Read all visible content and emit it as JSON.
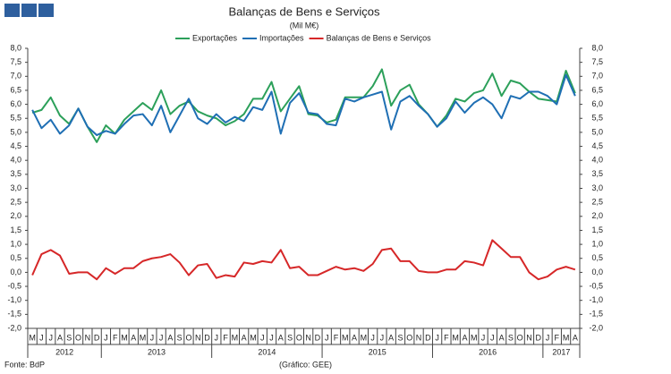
{
  "chart_data": {
    "type": "line",
    "title": "Balanças de Bens e Serviços",
    "subtitle": "(Mil M€)",
    "categories": [
      "M",
      "J",
      "J",
      "A",
      "S",
      "O",
      "N",
      "D",
      "J",
      "F",
      "M",
      "A",
      "M",
      "J",
      "J",
      "A",
      "S",
      "O",
      "N",
      "D",
      "J",
      "F",
      "M",
      "A",
      "M",
      "J",
      "J",
      "A",
      "S",
      "O",
      "N",
      "D",
      "J",
      "F",
      "M",
      "A",
      "M",
      "J",
      "J",
      "A",
      "S",
      "O",
      "N",
      "D",
      "J",
      "F",
      "M",
      "A",
      "M",
      "J",
      "J",
      "A",
      "S",
      "O",
      "N",
      "D",
      "J",
      "F",
      "M",
      "A"
    ],
    "years": [
      "2012",
      "2013",
      "2014",
      "2015",
      "2016",
      "2017"
    ],
    "series": [
      {
        "name": "Exportações",
        "color": "#2ca05a",
        "values": [
          5.7,
          5.8,
          6.25,
          5.6,
          5.3,
          5.85,
          5.2,
          4.65,
          5.25,
          4.95,
          5.45,
          5.75,
          6.05,
          5.8,
          6.5,
          5.65,
          5.95,
          6.1,
          5.75,
          5.6,
          5.5,
          5.25,
          5.4,
          5.65,
          6.2,
          6.2,
          6.8,
          5.75,
          6.2,
          6.65,
          5.65,
          5.6,
          5.35,
          5.45,
          6.25,
          6.25,
          6.25,
          6.65,
          7.25,
          5.95,
          6.5,
          6.7,
          6.0,
          5.65,
          5.2,
          5.6,
          6.2,
          6.1,
          6.4,
          6.5,
          7.1,
          6.3,
          6.85,
          6.75,
          6.45,
          6.2,
          6.15,
          6.1,
          7.2,
          6.4
        ]
      },
      {
        "name": "Importações",
        "color": "#1f6fb4",
        "values": [
          5.8,
          5.15,
          5.45,
          4.95,
          5.25,
          5.85,
          5.2,
          4.9,
          5.05,
          4.95,
          5.3,
          5.6,
          5.65,
          5.25,
          5.95,
          5.0,
          5.6,
          6.2,
          5.5,
          5.3,
          5.65,
          5.35,
          5.55,
          5.4,
          5.9,
          5.8,
          6.45,
          4.95,
          6.05,
          6.4,
          5.7,
          5.65,
          5.3,
          5.25,
          6.2,
          6.1,
          6.25,
          6.35,
          6.45,
          5.1,
          6.1,
          6.3,
          5.95,
          5.65,
          5.2,
          5.5,
          6.1,
          5.7,
          6.05,
          6.25,
          6.0,
          5.5,
          6.3,
          6.2,
          6.45,
          6.45,
          6.3,
          6.0,
          7.05,
          6.3
        ]
      },
      {
        "name": "Balanças de Bens e Serviços",
        "color": "#d62728",
        "values": [
          -0.1,
          0.65,
          0.8,
          0.6,
          -0.05,
          0.0,
          0.0,
          -0.25,
          0.15,
          -0.05,
          0.15,
          0.15,
          0.4,
          0.5,
          0.55,
          0.65,
          0.35,
          -0.1,
          0.25,
          0.3,
          -0.2,
          -0.1,
          -0.15,
          0.35,
          0.3,
          0.4,
          0.35,
          0.8,
          0.15,
          0.2,
          -0.1,
          -0.1,
          0.05,
          0.2,
          0.1,
          0.15,
          0.05,
          0.3,
          0.8,
          0.85,
          0.4,
          0.4,
          0.05,
          0.0,
          0.0,
          0.1,
          0.1,
          0.4,
          0.35,
          0.25,
          1.15,
          0.85,
          0.55,
          0.55,
          0.0,
          -0.25,
          -0.15,
          0.1,
          0.2,
          0.1
        ]
      }
    ],
    "ylim": [
      -2,
      8
    ],
    "yticks": [
      {
        "value": -2,
        "label": "-2,0"
      },
      {
        "value": -1.5,
        "label": "-1,5"
      },
      {
        "value": -1,
        "label": "-1,0"
      },
      {
        "value": -0.5,
        "label": "-0,5"
      },
      {
        "value": 0,
        "label": "0,0"
      },
      {
        "value": 0.5,
        "label": "0,5"
      },
      {
        "value": 1,
        "label": "1,0"
      },
      {
        "value": 1.5,
        "label": "1,5"
      },
      {
        "value": 2,
        "label": "2,0"
      },
      {
        "value": 2.5,
        "label": "2,5"
      },
      {
        "value": 3,
        "label": "3,0"
      },
      {
        "value": 3.5,
        "label": "3,5"
      },
      {
        "value": 4,
        "label": "4,0"
      },
      {
        "value": 4.5,
        "label": "4,5"
      },
      {
        "value": 5,
        "label": "5,0"
      },
      {
        "value": 5.5,
        "label": "5,5"
      },
      {
        "value": 6,
        "label": "6,0"
      },
      {
        "value": 6.5,
        "label": "6,5"
      },
      {
        "value": 7,
        "label": "7,0"
      },
      {
        "value": 7.5,
        "label": "7,5"
      },
      {
        "value": 8,
        "label": "8,0"
      }
    ],
    "y2lim": [
      -2,
      8
    ],
    "y2ticks": [
      {
        "value": -2,
        "label": "-2,0"
      },
      {
        "value": -1.5,
        "label": "-1,5"
      },
      {
        "value": -1,
        "label": "-1,0"
      },
      {
        "value": -0.5,
        "label": "-0,5"
      },
      {
        "value": 0,
        "label": "0,0"
      },
      {
        "value": 0.5,
        "label": "0,5"
      },
      {
        "value": 1,
        "label": "1,0"
      },
      {
        "value": 1.5,
        "label": "1,5"
      },
      {
        "value": 2,
        "label": "2,0"
      },
      {
        "value": 2.5,
        "label": "2,5"
      },
      {
        "value": 3,
        "label": "3,0"
      },
      {
        "value": 3.5,
        "label": "3,5"
      },
      {
        "value": 4,
        "label": "4,0"
      },
      {
        "value": 4.5,
        "label": "4,5"
      },
      {
        "value": 5,
        "label": "5,0"
      },
      {
        "value": 5.5,
        "label": "5,5"
      },
      {
        "value": 6,
        "label": "6,0"
      },
      {
        "value": 6.5,
        "label": "6,5"
      },
      {
        "value": 7,
        "label": "7,0"
      },
      {
        "value": 7.5,
        "label": "7,5"
      },
      {
        "value": 8,
        "label": "8,0"
      }
    ],
    "source": "Fonte: BdP",
    "credit": "(Gráfico: GEE)"
  }
}
